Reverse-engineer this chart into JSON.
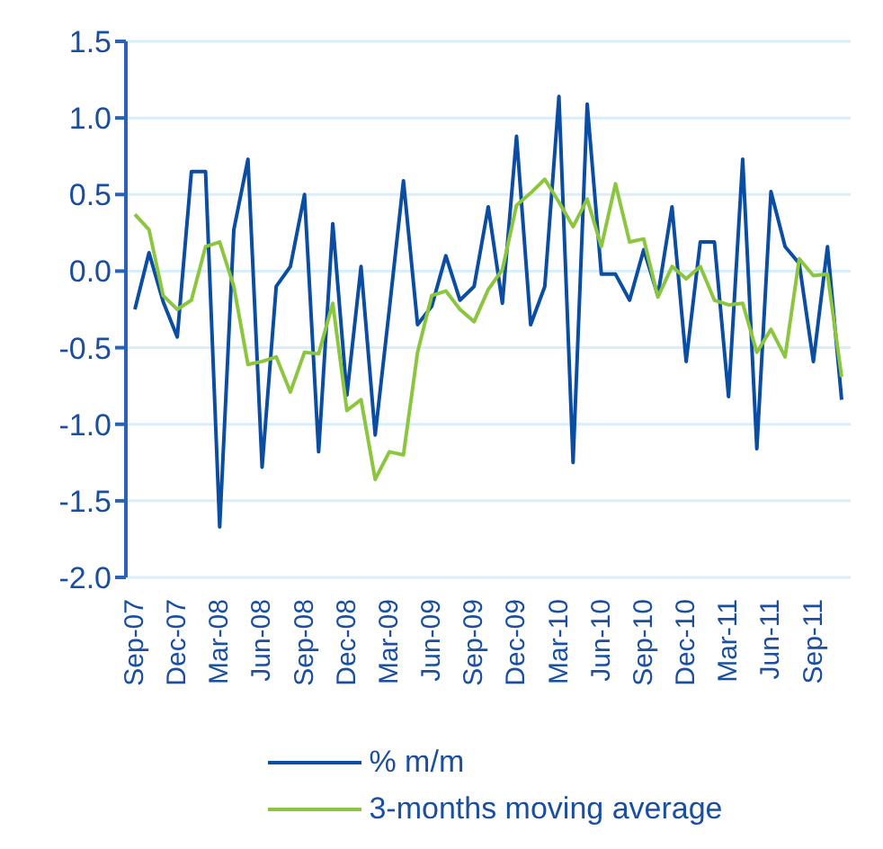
{
  "chart_data": {
    "type": "line",
    "categories": [
      "Sep-07",
      null,
      null,
      "Dec-07",
      null,
      null,
      "Mar-08",
      null,
      null,
      "Jun-08",
      null,
      null,
      "Sep-08",
      null,
      null,
      "Dec-08",
      null,
      null,
      "Mar-09",
      null,
      null,
      "Jun-09",
      null,
      null,
      "Sep-09",
      null,
      null,
      "Dec-09",
      null,
      null,
      "Mar-10",
      null,
      null,
      "Jun-10",
      null,
      null,
      "Sep-10",
      null,
      null,
      "Dec-10",
      null,
      null,
      "Mar-11",
      null,
      null,
      "Jun-11",
      null,
      null,
      "Sep-11",
      null,
      null
    ],
    "series": [
      {
        "name": "% m/m",
        "color": "#0b4da2",
        "values": [
          -0.25,
          0.12,
          -0.2,
          -0.43,
          0.65,
          0.65,
          -1.67,
          0.27,
          0.73,
          -1.28,
          -0.1,
          0.03,
          0.5,
          -1.18,
          0.31,
          -0.81,
          0.03,
          -1.07,
          -0.25,
          0.59,
          -0.35,
          -0.23,
          0.1,
          -0.19,
          -0.1,
          0.42,
          -0.21,
          0.88,
          -0.35,
          -0.1,
          1.14,
          -1.25,
          1.09,
          -0.02,
          -0.02,
          -0.19,
          0.14,
          -0.16,
          0.42,
          -0.59,
          0.19,
          0.19,
          -0.82,
          0.73,
          -1.16,
          0.52,
          0.16,
          0.05,
          -0.59,
          0.16,
          -0.84
        ]
      },
      {
        "name": "3-months moving average",
        "color": "#8cc63f",
        "values": [
          0.37,
          0.27,
          -0.16,
          -0.25,
          -0.19,
          0.16,
          0.19,
          -0.1,
          -0.61,
          -0.59,
          -0.56,
          -0.79,
          -0.53,
          -0.54,
          -0.21,
          -0.91,
          -0.84,
          -1.36,
          -1.18,
          -1.2,
          -0.53,
          -0.16,
          -0.13,
          -0.25,
          -0.33,
          -0.12,
          0.01,
          0.43,
          0.51,
          0.6,
          0.45,
          0.29,
          0.47,
          0.16,
          0.57,
          0.19,
          0.21,
          -0.17,
          0.03,
          -0.05,
          0.03,
          -0.19,
          -0.22,
          -0.21,
          -0.53,
          -0.38,
          -0.56,
          0.08,
          -0.03,
          -0.02,
          -0.69
        ]
      }
    ],
    "ylim": [
      -2.0,
      1.5
    ],
    "yticks": [
      {
        "value": -2.0,
        "label": "-2.0"
      },
      {
        "value": -1.5,
        "label": "-1.5"
      },
      {
        "value": -1.0,
        "label": "-1.0"
      },
      {
        "value": -0.5,
        "label": "-0.5"
      },
      {
        "value": 0,
        "label": "0.0"
      },
      {
        "value": 0.5,
        "label": "0.5"
      },
      {
        "value": 1.0,
        "label": "1.0"
      },
      {
        "value": 1.5,
        "label": "1.5"
      }
    ],
    "grid": "y",
    "legend": "bottom",
    "marker": "none",
    "line_style": "solid"
  }
}
